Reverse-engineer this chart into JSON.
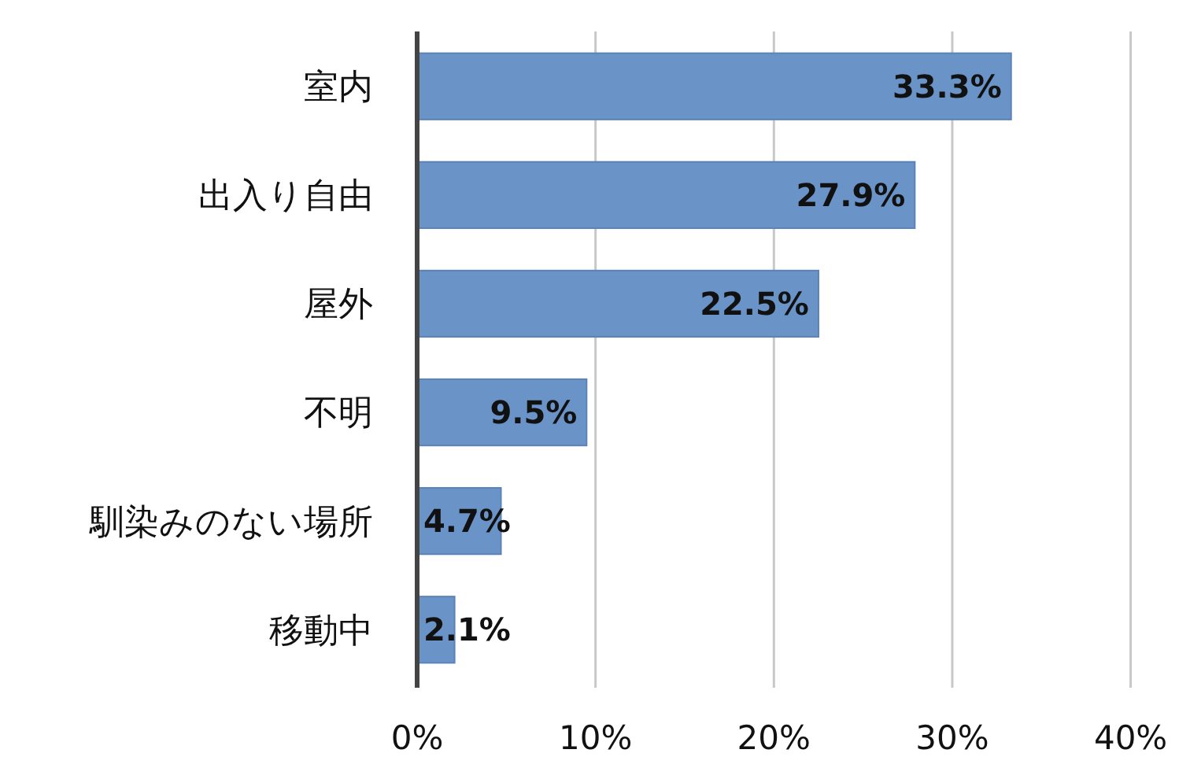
{
  "chart_data": {
    "type": "bar",
    "orientation": "horizontal",
    "categories": [
      "室内",
      "出入り自由",
      "屋外",
      "不明",
      "馴染みのない場所",
      "移動中"
    ],
    "values": [
      33.3,
      27.9,
      22.5,
      9.5,
      4.7,
      2.1
    ],
    "value_labels": [
      "33.3%",
      "27.9%",
      "22.5%",
      "9.5%",
      "4.7%",
      "2.1%"
    ],
    "color": "#6a93c7",
    "xlim": [
      0,
      40
    ],
    "xticks": [
      {
        "value": 0,
        "label": "0%"
      },
      {
        "value": 10,
        "label": "10%"
      },
      {
        "value": 20,
        "label": "20%"
      },
      {
        "value": 30,
        "label": "30%"
      },
      {
        "value": 40,
        "label": "40%"
      }
    ],
    "grid": "x"
  }
}
